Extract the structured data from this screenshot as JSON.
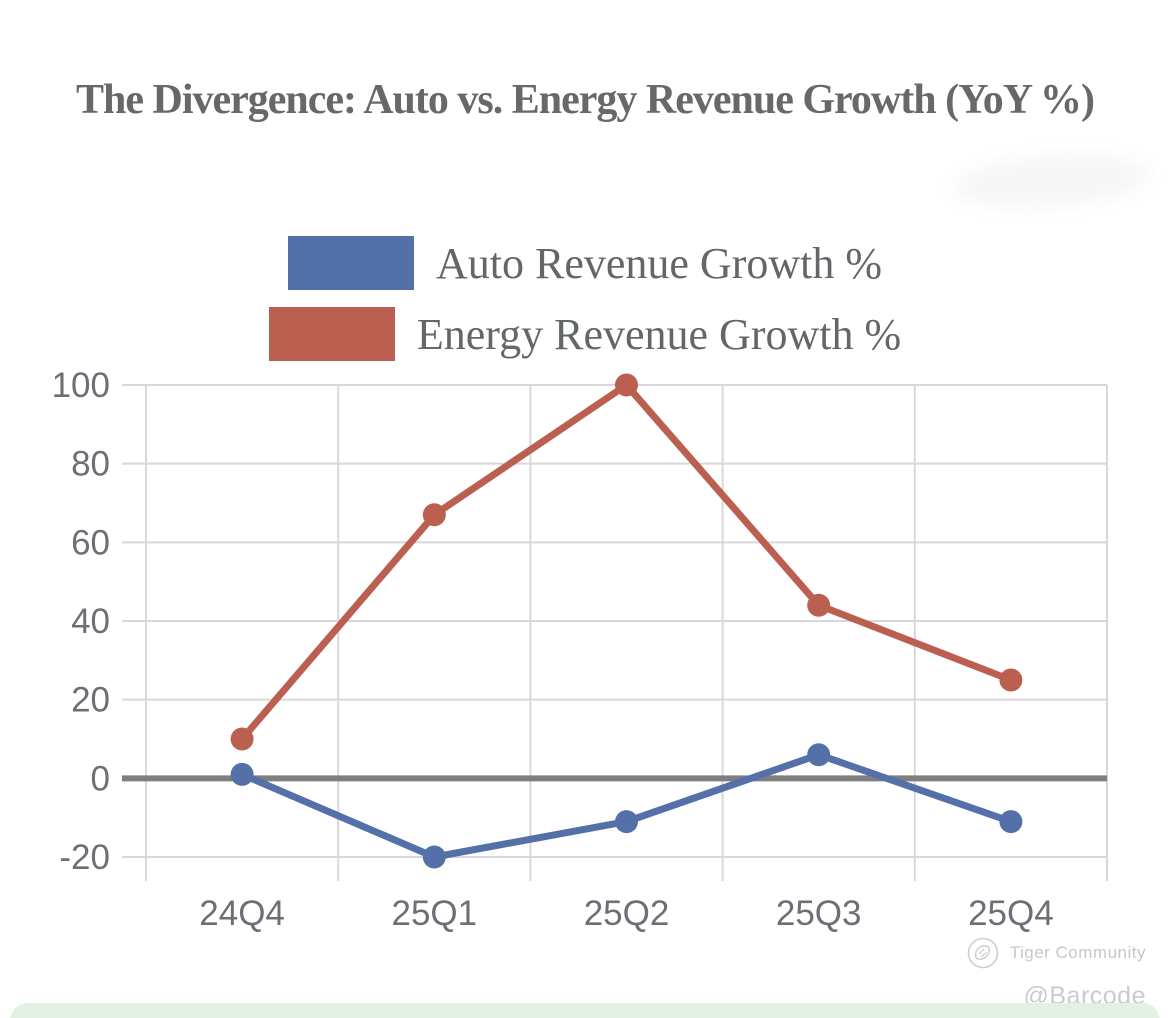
{
  "page": {
    "title": "The Divergence: Auto vs. Energy Revenue Growth (YoY %)"
  },
  "legend": [
    {
      "label": "Auto Revenue Growth %",
      "color": "#5470a8"
    },
    {
      "label": "Energy Revenue Growth %",
      "color": "#bb6050"
    }
  ],
  "chart_data": {
    "type": "line",
    "title": "The Divergence: Auto vs. Energy Revenue Growth (YoY %)",
    "xlabel": "",
    "ylabel": "",
    "categories": [
      "24Q4",
      "25Q1",
      "25Q2",
      "25Q3",
      "25Q4"
    ],
    "series": [
      {
        "name": "Auto Revenue Growth %",
        "color": "#5470a8",
        "values": [
          1,
          -20,
          -11,
          6,
          -11
        ]
      },
      {
        "name": "Energy Revenue Growth %",
        "color": "#bb6050",
        "values": [
          10,
          67,
          100,
          44,
          25
        ]
      }
    ],
    "ylim": [
      -20,
      100
    ],
    "yticks": [
      100,
      80,
      60,
      40,
      20,
      0,
      -20
    ],
    "grid": true,
    "zero_line": true,
    "legend_position": "top-center",
    "marker": "circle"
  },
  "colors": {
    "grid": "#d8d8d8",
    "zero_line": "#7f7f7f",
    "axis_text": "#6c7076",
    "watermark_text": "#c7c9cd",
    "bottom_bar": "#e5f0e4"
  },
  "watermark": {
    "logo": "tiger-community-logo-icon",
    "community": "Tiger Community",
    "handle": "@Barcode"
  }
}
